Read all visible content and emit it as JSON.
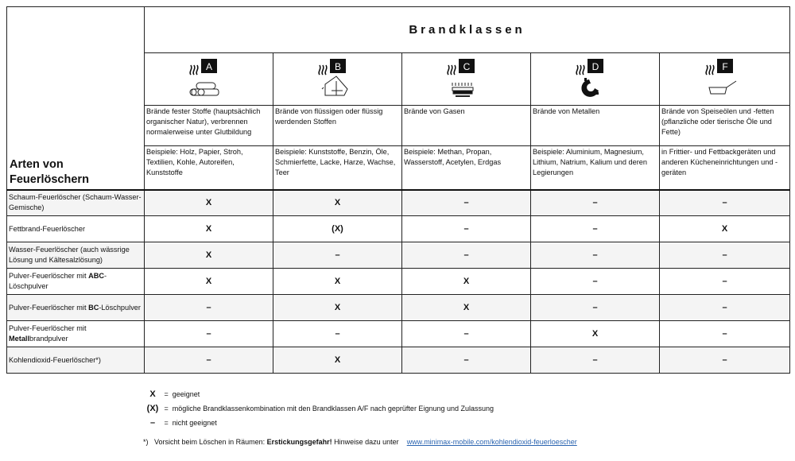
{
  "title": "Brandklassen",
  "row_header": "Arten von Feuerlöschern",
  "classes": [
    {
      "letter": "A",
      "icon": "solid-fuel-logs-icon",
      "description": "Brände fester Stoffe (hauptsächlich organischer Natur), verbrennen normalerweise unter Glutbildung",
      "examples": "Beispiele: Holz, Papier, Stroh, Textilien, Kohle, Autoreifen, Kunststoffe"
    },
    {
      "letter": "B",
      "icon": "liquid-canister-icon",
      "description": "Brände von flüssigen oder flüssig werdenden Stoffen",
      "examples": "Beispiele: Kunststoffe, Benzin, Öle, Schmierfette, Lacke, Harze, Wachse, Teer"
    },
    {
      "letter": "C",
      "icon": "gas-burner-icon",
      "description": "Brände von Gasen",
      "examples": "Beispiele: Methan, Propan, Wasserstoff, Acetylen, Erdgas"
    },
    {
      "letter": "D",
      "icon": "metal-gear-icon",
      "description": "Brände von Metallen",
      "examples": "Beispiele: Aluminium, Magnesium, Lithium, Natrium, Kalium und deren Legierungen"
    },
    {
      "letter": "F",
      "icon": "frying-pan-icon",
      "description": "Brände von Speiseölen und -fetten (pflanzliche oder tierische Öle und Fette)",
      "examples": "in Frittier- und Fettbackgeräten und anderen Kücheneinrichtungen und -geräten"
    }
  ],
  "rows": [
    {
      "label": {
        "pre": "Schaum-Feuerlöscher (Schaum-Wasser-Gemische)",
        "bold": "",
        "post": ""
      },
      "values": [
        "X",
        "X",
        "–",
        "–",
        "–"
      ]
    },
    {
      "label": {
        "pre": "Fettbrand-Feuerlöscher",
        "bold": "",
        "post": ""
      },
      "values": [
        "X",
        "(X)",
        "–",
        "–",
        "X"
      ]
    },
    {
      "label": {
        "pre": "Wasser-Feuerlöscher (auch wässrige Lösung und Kältesalzlösung)",
        "bold": "",
        "post": ""
      },
      "values": [
        "X",
        "–",
        "–",
        "–",
        "–"
      ]
    },
    {
      "label": {
        "pre": "Pulver-Feuerlöscher mit ",
        "bold": "ABC",
        "post": "-Löschpulver"
      },
      "values": [
        "X",
        "X",
        "X",
        "–",
        "–"
      ]
    },
    {
      "label": {
        "pre": "Pulver-Feuerlöscher mit ",
        "bold": "BC",
        "post": "-Löschpulver"
      },
      "values": [
        "–",
        "X",
        "X",
        "–",
        "–"
      ]
    },
    {
      "label": {
        "pre": "Pulver-Feuerlöscher mit ",
        "bold": "Metall",
        "post": "brandpulver"
      },
      "values": [
        "–",
        "–",
        "–",
        "X",
        "–"
      ]
    },
    {
      "label": {
        "pre": "Kohlendioxid-Feuerlöscher*)",
        "bold": "",
        "post": ""
      },
      "values": [
        "–",
        "X",
        "–",
        "–",
        "–"
      ]
    }
  ],
  "legend": [
    {
      "symbol": "X",
      "text": "geeignet"
    },
    {
      "symbol": "(X)",
      "text": "mögliche Brandklassenkombination mit den Brandklassen A/F nach geprüfter Eignung und Zulassung"
    },
    {
      "symbol": "–",
      "text": "nicht geeignet"
    }
  ],
  "footnote": {
    "mark": "*)",
    "pre": "Vorsicht beim Löschen in Räumen: ",
    "bold": "Erstickungsgefahr!",
    "post": " Hinweise dazu unter",
    "link": "www.minimax-mobile.com/kohlendioxid-feuerloescher"
  }
}
